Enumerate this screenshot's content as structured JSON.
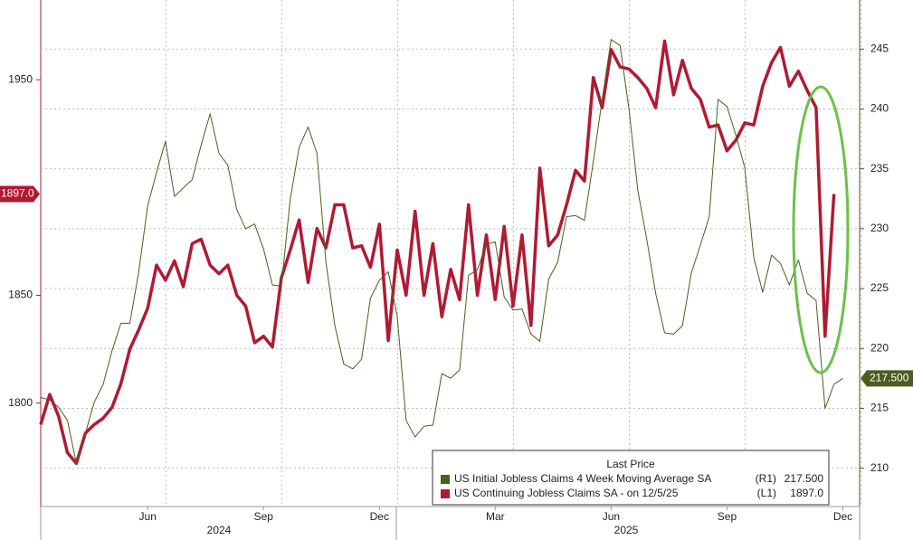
{
  "chart_data": {
    "type": "line",
    "legend_title": "Last Price",
    "categories": [
      null,
      null,
      null,
      null,
      null,
      null,
      null,
      null,
      null,
      null,
      null,
      null,
      "Jun",
      null,
      null,
      null,
      null,
      null,
      null,
      null,
      null,
      null,
      null,
      null,
      null,
      "Sep",
      null,
      null,
      null,
      null,
      null,
      null,
      null,
      null,
      null,
      null,
      null,
      null,
      "Dec",
      null,
      null,
      null,
      null,
      null,
      null,
      null,
      null,
      null,
      null,
      null,
      null,
      "Mar",
      null,
      null,
      null,
      null,
      null,
      null,
      null,
      null,
      null,
      null,
      null,
      null,
      "Jun",
      null,
      null,
      null,
      null,
      null,
      null,
      null,
      null,
      null,
      null,
      null,
      null,
      "Sep",
      null,
      null,
      null,
      null,
      null,
      null,
      null,
      null,
      null,
      null,
      null,
      null,
      "Dec"
    ],
    "years": [
      "2024",
      "2025"
    ],
    "series": [
      {
        "name": "US Initial Jobless Claims 4 Week Moving Average SA",
        "axis_label": "(R1)",
        "axis": "y2",
        "color": "#4b5e1f",
        "width": 1,
        "last_label": "217.500",
        "values": [
          215.9,
          215.7,
          215.1,
          214.0,
          210.4,
          212.9,
          215.5,
          217.0,
          219.8,
          222.1,
          222.1,
          226.4,
          231.9,
          234.7,
          237.3,
          232.7,
          233.4,
          234.1,
          237.0,
          239.6,
          236.3,
          235.3,
          231.6,
          230.0,
          230.4,
          228.3,
          225.3,
          225.2,
          232.5,
          236.8,
          238.5,
          236.3,
          227.2,
          221.9,
          218.7,
          218.3,
          219.1,
          224.2,
          225.7,
          226.4,
          222.7,
          214.0,
          212.6,
          213.5,
          213.6,
          217.9,
          217.5,
          218.2,
          226.1,
          226.6,
          228.7,
          228.9,
          224.3,
          223.2,
          223.3,
          221.2,
          220.6,
          225.8,
          227.2,
          231.0,
          231.1,
          230.7,
          235.6,
          240.8,
          245.8,
          245.3,
          240.0,
          233.2,
          229.1,
          224.6,
          221.3,
          221.2,
          221.9,
          226.3,
          228.6,
          231.0,
          240.8,
          240.2,
          237.8,
          235.1,
          227.6,
          224.7,
          227.8,
          227.1,
          225.3,
          227.4,
          224.6,
          224.0,
          215.0,
          217.0,
          217.5
        ]
      },
      {
        "name": "US Continuing Jobless Claims SA -  on 12/5/25",
        "axis_label": "(L1)",
        "axis": "y",
        "color": "#b01a33",
        "width": 3.5,
        "last_label": "1897.0",
        "values": [
          1790,
          1804,
          1794,
          1777,
          1772,
          1786,
          1790,
          1793,
          1798,
          1809,
          1825,
          1834,
          1844,
          1864,
          1857,
          1866,
          1854,
          1874,
          1876,
          1864,
          1860,
          1864,
          1850,
          1845,
          1828,
          1831,
          1826,
          1858,
          1871,
          1885,
          1856,
          1881,
          1872,
          1892,
          1892,
          1872,
          1873,
          1863,
          1883,
          1829,
          1871,
          1850,
          1889,
          1850,
          1874,
          1840,
          1862,
          1848,
          1892,
          1850,
          1878,
          1848,
          1882,
          1845,
          1878,
          1836,
          1909,
          1873,
          1878,
          1892,
          1908,
          1903,
          1951,
          1937,
          1964,
          1956,
          1955,
          1951,
          1946,
          1937,
          1968,
          1943,
          1959,
          1946,
          1941,
          1928,
          1929,
          1917,
          1922,
          1930,
          1929,
          1947,
          1958,
          1965,
          1947,
          1954,
          1945,
          1937,
          1831,
          1897,
          null
        ]
      }
    ],
    "ylim": [
      1752,
      1987
    ],
    "yticks": [
      1800,
      1850,
      1950
    ],
    "y2lim": [
      206.8,
      249.1
    ],
    "y2ticks": [
      210,
      215,
      220,
      225,
      230,
      235,
      240,
      245
    ],
    "grid": true
  }
}
